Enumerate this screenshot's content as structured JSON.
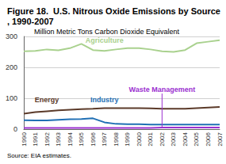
{
  "chart_data": {
    "type": "line",
    "title": "Figure 18.  U.S. Nitrous Oxide Emissions by Source, 1990-2007",
    "subtitle": "Million Metric Tons Carbon Dioxide Equivalent",
    "source": "Source: EIA estimates.",
    "categories": [
      "1990",
      "1991",
      "1992",
      "1993",
      "1994",
      "1995",
      "1996",
      "1997",
      "1998",
      "1999",
      "2000",
      "2001",
      "2002",
      "2003",
      "2004",
      "2005",
      "2006",
      "2007"
    ],
    "series": [
      {
        "name": "Agriculture",
        "color": "#a9d18e",
        "values": [
          252,
          253,
          258,
          255,
          262,
          276,
          256,
          253,
          258,
          262,
          262,
          258,
          252,
          250,
          256,
          278,
          283,
          288
        ]
      },
      {
        "name": "Energy",
        "color": "#5b3a29",
        "values": [
          50,
          55,
          58,
          61,
          63,
          65,
          66,
          68,
          68,
          68,
          68,
          67,
          66,
          66,
          66,
          68,
          70,
          72
        ]
      },
      {
        "name": "Industry",
        "color": "#1f6fb4",
        "values": [
          29,
          28,
          28,
          30,
          32,
          33,
          35,
          22,
          17,
          16,
          16,
          15,
          15,
          15,
          15,
          15,
          15,
          15
        ]
      },
      {
        "name": "Waste Management",
        "color": "#9b30d0",
        "values": [
          4,
          4,
          4,
          4,
          4,
          4,
          4,
          4,
          4,
          4,
          4,
          4,
          5,
          5,
          5,
          5,
          5,
          5
        ]
      }
    ],
    "ylim": [
      0,
      300
    ],
    "yticks": [
      0,
      100,
      200,
      300
    ],
    "grid": true
  }
}
